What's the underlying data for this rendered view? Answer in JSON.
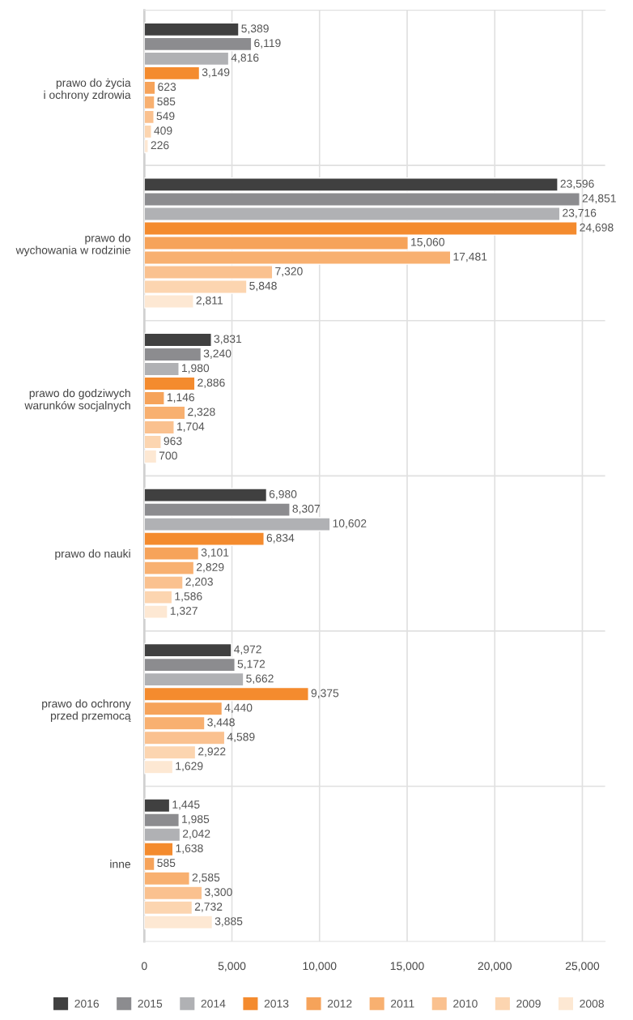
{
  "chart_data": {
    "type": "bar",
    "orientation": "horizontal",
    "categories": [
      "prawo do życia\ni ochrony zdrowia",
      "prawo do\nwychowania w rodzinie",
      "prawo do godziwych\nwarunków socjalnych",
      "prawo do nauki",
      "prawo do ochrony\nprzed przemocą",
      "inne"
    ],
    "series": [
      {
        "name": "2016",
        "color": "#404040",
        "values": [
          5389,
          23596,
          3831,
          6980,
          4972,
          1445
        ],
        "value_labels": [
          "5,389",
          "23,596",
          "3,831",
          "6,980",
          "4,972",
          "1,445"
        ]
      },
      {
        "name": "2015",
        "color": "#8c8c8f",
        "values": [
          6119,
          24851,
          3240,
          8307,
          5172,
          1985
        ],
        "value_labels": [
          "6,119",
          "24,851",
          "3,240",
          "8,307",
          "5,172",
          "1,985"
        ]
      },
      {
        "name": "2014",
        "color": "#b0b1b4",
        "values": [
          4816,
          23716,
          1980,
          10602,
          5662,
          2042
        ],
        "value_labels": [
          "4,816",
          "23,716",
          "1,980",
          "10,602",
          "5,662",
          "2,042"
        ]
      },
      {
        "name": "2013",
        "color": "#f48b2e",
        "values": [
          3149,
          24698,
          2886,
          6834,
          9375,
          1638
        ],
        "value_labels": [
          "3,149",
          "24,698",
          "2,886",
          "6,834",
          "9,375",
          "1,638"
        ]
      },
      {
        "name": "2012",
        "color": "#f6a35a",
        "values": [
          623,
          15060,
          1146,
          3101,
          4440,
          585
        ],
        "value_labels": [
          "623",
          "15,060",
          "1,146",
          "3,101",
          "4,440",
          "585"
        ]
      },
      {
        "name": "2011",
        "color": "#f8b070",
        "values": [
          585,
          17481,
          2328,
          2829,
          3448,
          2585
        ],
        "value_labels": [
          "585",
          "17,481",
          "2,328",
          "2,829",
          "3,448",
          "2,585"
        ]
      },
      {
        "name": "2010",
        "color": "#fac18f",
        "values": [
          549,
          7320,
          1704,
          2203,
          4589,
          3300
        ],
        "value_labels": [
          "549",
          "7,320",
          "1,704",
          "2,203",
          "4,589",
          "3,300"
        ]
      },
      {
        "name": "2009",
        "color": "#fcd5b0",
        "values": [
          409,
          5848,
          963,
          1586,
          2922,
          2732
        ],
        "value_labels": [
          "409",
          "5,848",
          "963",
          "1,586",
          "2,922",
          "2,732"
        ]
      },
      {
        "name": "2008",
        "color": "#fde8d3",
        "values": [
          226,
          2811,
          700,
          1327,
          1629,
          3885
        ],
        "value_labels": [
          "226",
          "2,811",
          "700",
          "1,327",
          "1,629",
          "3,885"
        ]
      }
    ],
    "xlim": [
      0,
      26300
    ],
    "xticks": [
      {
        "value": 0,
        "label": "0"
      },
      {
        "value": 5000,
        "label": "5,000"
      },
      {
        "value": 10000,
        "label": "10,000"
      },
      {
        "value": 15000,
        "label": "15,000"
      },
      {
        "value": 20000,
        "label": "20,000"
      },
      {
        "value": 25000,
        "label": "25,000"
      }
    ],
    "grid": "x",
    "legend": "bottom"
  }
}
